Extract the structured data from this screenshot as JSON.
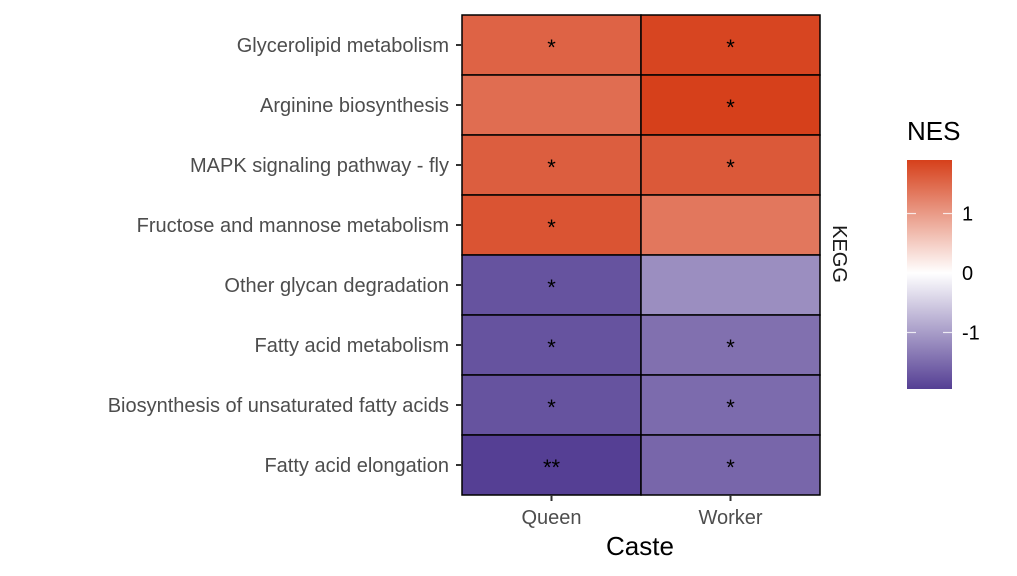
{
  "chart_data": {
    "type": "heatmap",
    "title": "",
    "xlabel": "Caste",
    "ylabel": "",
    "facet_label": "KEGG",
    "x_categories": [
      "Queen",
      "Worker"
    ],
    "y_categories": [
      "Glycerolipid metabolism",
      "Arginine biosynthesis",
      "MAPK signaling pathway - fly",
      "Fructose and mannose metabolism",
      "Other glycan degradation",
      "Fatty acid metabolism",
      "Biosynthesis of unsaturated fatty acids",
      "Fatty acid elongation"
    ],
    "values": [
      [
        1.55,
        1.85
      ],
      [
        1.45,
        1.9
      ],
      [
        1.6,
        1.65
      ],
      [
        1.7,
        1.35
      ],
      [
        -1.75,
        -1.15
      ],
      [
        -1.75,
        -1.45
      ],
      [
        -1.75,
        -1.5
      ],
      [
        -1.95,
        -1.55
      ]
    ],
    "significance": [
      [
        "*",
        "*"
      ],
      [
        "",
        "*"
      ],
      [
        "*",
        "*"
      ],
      [
        "*",
        ""
      ],
      [
        "*",
        ""
      ],
      [
        "*",
        "*"
      ],
      [
        "*",
        "*"
      ],
      [
        "**",
        "*"
      ]
    ],
    "legend": {
      "title": "NES",
      "position": "right",
      "ticks": [
        "1",
        "0",
        "-1"
      ],
      "tick_values": [
        1,
        0,
        -1
      ],
      "range": [
        -1.95,
        1.9
      ],
      "low_color": "#553f94",
      "mid_color": "#ffffff",
      "high_color": "#d6401b"
    }
  }
}
